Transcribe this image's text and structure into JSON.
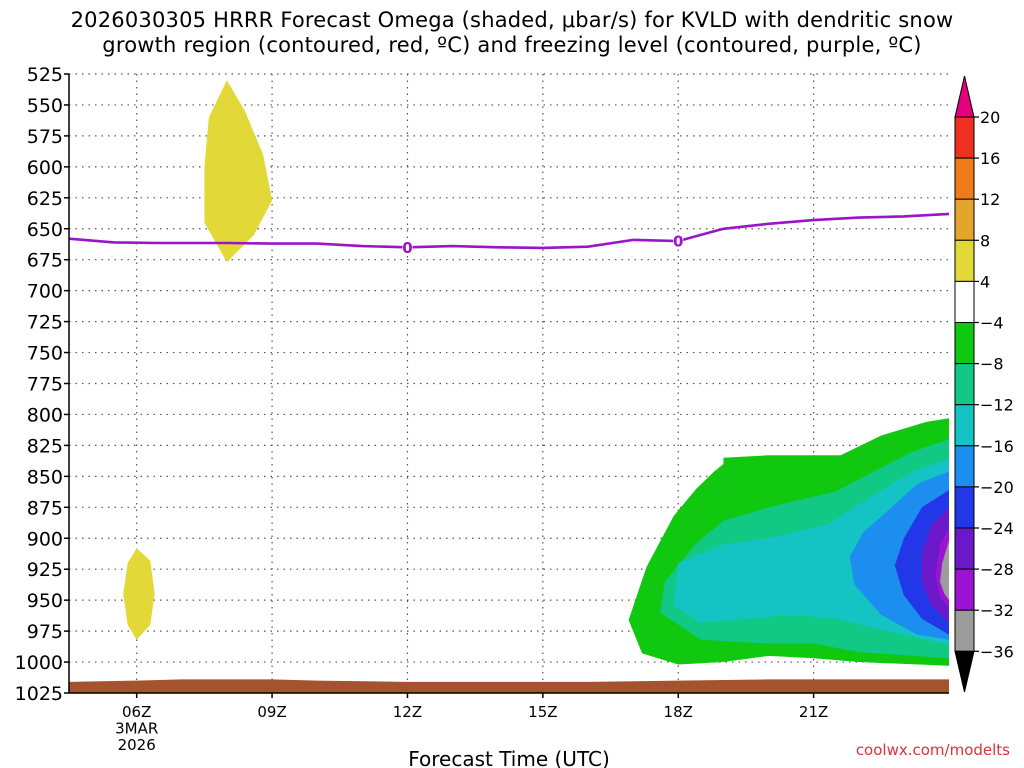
{
  "chart_data": {
    "type": "time-height cross-section (filled contour)",
    "title_line1": "2026030305 HRRR Forecast Omega (shaded, μbar/s) for KVLD with dendritic snow",
    "title_line2": "growth region (contoured, red, ºC) and freezing level (contoured, purple, ºC)",
    "xlabel": "Forecast Time (UTC)",
    "ylabel": "",
    "credit": "coolwx.com/modelts",
    "x_range_hours": [
      4.5,
      24.0
    ],
    "y_range_hpa": [
      525,
      1025
    ],
    "y_ticks": [
      525,
      550,
      575,
      600,
      625,
      650,
      675,
      700,
      725,
      750,
      775,
      800,
      825,
      850,
      875,
      900,
      925,
      950,
      975,
      1000,
      1025
    ],
    "x_ticks": [
      {
        "hour": 6,
        "lines": [
          "06Z",
          "3MAR",
          "2026"
        ]
      },
      {
        "hour": 9,
        "lines": [
          "09Z"
        ]
      },
      {
        "hour": 12,
        "lines": [
          "12Z"
        ]
      },
      {
        "hour": 15,
        "lines": [
          "15Z"
        ]
      },
      {
        "hour": 18,
        "lines": [
          "18Z"
        ]
      },
      {
        "hour": 21,
        "lines": [
          "21Z"
        ]
      }
    ],
    "grid": true,
    "colorbar": {
      "labels": [
        "20",
        "16",
        "12",
        "8",
        "4",
        "−4",
        "−8",
        "−12",
        "−16",
        "−20",
        "−24",
        "−28",
        "−32",
        "−36"
      ],
      "top_color": "#e3007a",
      "bottom_color": "#000000",
      "bins": [
        {
          "range": [
            16,
            20
          ],
          "color": "#ef3020"
        },
        {
          "range": [
            12,
            16
          ],
          "color": "#ee7a18"
        },
        {
          "range": [
            8,
            12
          ],
          "color": "#e3a52c"
        },
        {
          "range": [
            4,
            8
          ],
          "color": "#e2d838"
        },
        {
          "range": [
            -4,
            4
          ],
          "color": "#ffffff"
        },
        {
          "range": [
            -8,
            -4
          ],
          "color": "#11c811"
        },
        {
          "range": [
            -12,
            -8
          ],
          "color": "#11c885"
        },
        {
          "range": [
            -16,
            -12
          ],
          "color": "#14c4c4"
        },
        {
          "range": [
            -20,
            -16
          ],
          "color": "#1c8ef0"
        },
        {
          "range": [
            -24,
            -20
          ],
          "color": "#2238e8"
        },
        {
          "range": [
            -28,
            -24
          ],
          "color": "#6a18c8"
        },
        {
          "range": [
            -32,
            -28
          ],
          "color": "#9c14d2"
        },
        {
          "range": [
            -36,
            -32
          ],
          "color": "#9c9c9c"
        }
      ]
    },
    "freezing_level": {
      "label": "0",
      "color": "#9b14c8",
      "points": [
        [
          4.5,
          658
        ],
        [
          5.5,
          661
        ],
        [
          6.5,
          661.5
        ],
        [
          8.0,
          661.5
        ],
        [
          9.0,
          662
        ],
        [
          10.0,
          662
        ],
        [
          11.0,
          664
        ],
        [
          12.0,
          665
        ],
        [
          13.0,
          664
        ],
        [
          14.0,
          665
        ],
        [
          15.0,
          665.5
        ],
        [
          16.0,
          664.5
        ],
        [
          17.0,
          659
        ],
        [
          18.0,
          660
        ],
        [
          18.5,
          655
        ],
        [
          19.0,
          650
        ],
        [
          20.0,
          646
        ],
        [
          21.0,
          643
        ],
        [
          22.0,
          641
        ],
        [
          23.0,
          640
        ],
        [
          24.0,
          638
        ]
      ],
      "label_hours": [
        12,
        18
      ]
    },
    "shaded_regions": [
      {
        "value_bin": "4 to 8",
        "color": "#e2d838",
        "points": [
          [
            8.0,
            530
          ],
          [
            8.4,
            555
          ],
          [
            8.8,
            590
          ],
          [
            9.0,
            627
          ],
          [
            8.6,
            655
          ],
          [
            8.0,
            677
          ],
          [
            7.5,
            645
          ],
          [
            7.5,
            600
          ],
          [
            7.6,
            560
          ]
        ]
      },
      {
        "value_bin": "4 to 8",
        "color": "#e2d838",
        "points": [
          [
            6.0,
            908
          ],
          [
            6.3,
            918
          ],
          [
            6.4,
            945
          ],
          [
            6.3,
            970
          ],
          [
            6.0,
            982
          ],
          [
            5.8,
            970
          ],
          [
            5.7,
            945
          ],
          [
            5.8,
            920
          ]
        ]
      },
      {
        "value_bin": "-8 to -4",
        "color": "#11c811",
        "points": [
          [
            24.0,
            803
          ],
          [
            23.5,
            806
          ],
          [
            22.5,
            817
          ],
          [
            21.6,
            833
          ],
          [
            20.0,
            833
          ],
          [
            19.0,
            835
          ],
          [
            19.0,
            840
          ],
          [
            18.8,
            846
          ],
          [
            18.4,
            860
          ],
          [
            17.9,
            882
          ],
          [
            17.3,
            923
          ],
          [
            16.9,
            966
          ],
          [
            17.2,
            993
          ],
          [
            18.0,
            1002
          ],
          [
            19.0,
            1000
          ],
          [
            20.0,
            995
          ],
          [
            21.0,
            997
          ],
          [
            22.0,
            1000
          ],
          [
            24.0,
            1003
          ]
        ]
      },
      {
        "value_bin": "-12 to -8",
        "color": "#11c885",
        "points": [
          [
            24.0,
            820
          ],
          [
            23.2,
            830
          ],
          [
            22.6,
            841
          ],
          [
            21.5,
            862
          ],
          [
            20.0,
            875
          ],
          [
            19.0,
            886
          ],
          [
            18.4,
            904
          ],
          [
            17.7,
            935
          ],
          [
            17.6,
            960
          ],
          [
            18.5,
            982
          ],
          [
            20.0,
            985
          ],
          [
            21.0,
            985
          ],
          [
            22.0,
            992
          ],
          [
            24.0,
            997
          ]
        ]
      },
      {
        "value_bin": "-16 to -12",
        "color": "#14c4c4",
        "points": [
          [
            24.0,
            836
          ],
          [
            23.2,
            846
          ],
          [
            22.2,
            868
          ],
          [
            21.3,
            889
          ],
          [
            20.0,
            900
          ],
          [
            19.0,
            905
          ],
          [
            18.0,
            920
          ],
          [
            17.9,
            955
          ],
          [
            18.5,
            968
          ],
          [
            19.5,
            965
          ],
          [
            20.5,
            962
          ],
          [
            21.5,
            965
          ],
          [
            22.5,
            974
          ],
          [
            24.0,
            986
          ]
        ]
      },
      {
        "value_bin": "-20 to -16",
        "color": "#1c8ef0",
        "points": [
          [
            24.0,
            846
          ],
          [
            23.3,
            856
          ],
          [
            22.7,
            876
          ],
          [
            22.1,
            895
          ],
          [
            21.8,
            915
          ],
          [
            21.9,
            937
          ],
          [
            22.5,
            962
          ],
          [
            23.3,
            978
          ],
          [
            24.0,
            982
          ]
        ]
      },
      {
        "value_bin": "-24 to -20",
        "color": "#2238e8",
        "points": [
          [
            24.0,
            861
          ],
          [
            23.4,
            875
          ],
          [
            23.0,
            900
          ],
          [
            22.8,
            922
          ],
          [
            23.0,
            946
          ],
          [
            23.4,
            965
          ],
          [
            24.0,
            978
          ]
        ]
      },
      {
        "value_bin": "-28 to -24",
        "color": "#6a18c8",
        "points": [
          [
            24.0,
            875
          ],
          [
            23.6,
            890
          ],
          [
            23.4,
            912
          ],
          [
            23.4,
            935
          ],
          [
            23.6,
            954
          ],
          [
            24.0,
            968
          ]
        ]
      },
      {
        "value_bin": "-32 to -28",
        "color": "#9c14d2",
        "points": [
          [
            24.0,
            892
          ],
          [
            23.8,
            905
          ],
          [
            23.7,
            930
          ],
          [
            23.8,
            948
          ],
          [
            24.0,
            956
          ]
        ]
      },
      {
        "value_bin": "-36 to -32",
        "color": "#9c9c9c",
        "points": [
          [
            24.0,
            902
          ],
          [
            23.85,
            920
          ],
          [
            23.8,
            935
          ],
          [
            23.9,
            945
          ],
          [
            24.0,
            950
          ]
        ]
      }
    ],
    "terrain": {
      "color": "#a5522e",
      "surface_hpa": [
        [
          4.5,
          1016
        ],
        [
          6.0,
          1015
        ],
        [
          7.0,
          1014
        ],
        [
          9.0,
          1014
        ],
        [
          10.0,
          1015
        ],
        [
          12.0,
          1016
        ],
        [
          16.0,
          1016
        ],
        [
          18.0,
          1015
        ],
        [
          20.0,
          1014
        ],
        [
          22.0,
          1014
        ],
        [
          24.0,
          1014
        ]
      ]
    }
  }
}
